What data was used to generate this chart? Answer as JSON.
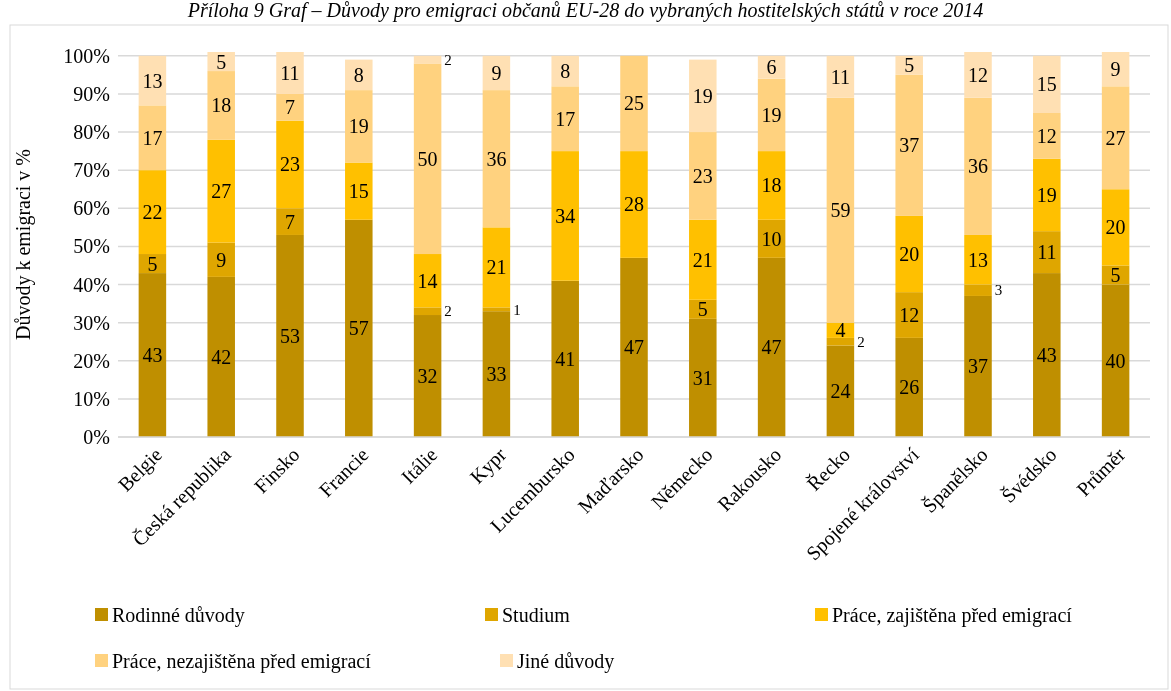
{
  "chart_data": {
    "type": "bar",
    "stacked": true,
    "title": "Příloha 9 Graf – Důvody pro emigraci občanů EU-28 do vybraných hostitelských států v roce 2014",
    "ylabel": "Důvody k emigraci v %",
    "categories": [
      "Belgie",
      "Česká republika",
      "Finsko",
      "Francie",
      "Itálie",
      "Kypr",
      "Lucembursko",
      "Maďarsko",
      "Německo",
      "Rakousko",
      "Řecko",
      "Spojené království",
      "Španělsko",
      "Švédsko",
      "Průměr"
    ],
    "series": [
      {
        "name": "Rodinné důvody",
        "color": "#bf8f00",
        "values": [
          43,
          42,
          53,
          57,
          32,
          33,
          41,
          47,
          31,
          47,
          24,
          26,
          37,
          43,
          40
        ]
      },
      {
        "name": "Studium",
        "color": "#dfa600",
        "values": [
          5,
          9,
          7,
          null,
          2,
          1,
          null,
          null,
          5,
          10,
          2,
          12,
          3,
          11,
          5
        ]
      },
      {
        "name": "Práce, zajištěna před emigrací",
        "color": "#ffc000",
        "values": [
          22,
          27,
          23,
          15,
          14,
          21,
          34,
          28,
          21,
          18,
          4,
          20,
          13,
          19,
          20
        ]
      },
      {
        "name": "Práce, nezajištěna před emigrací",
        "color": "#ffd27f",
        "values": [
          17,
          18,
          7,
          19,
          50,
          36,
          17,
          25,
          23,
          19,
          59,
          37,
          36,
          12,
          27
        ]
      },
      {
        "name": "Jiné důvody",
        "color": "#ffe0b3",
        "values": [
          13,
          5,
          11,
          8,
          2,
          9,
          8,
          null,
          19,
          6,
          11,
          5,
          12,
          15,
          9
        ]
      }
    ],
    "ylim": [
      0,
      101
    ],
    "yticks": [
      {
        "value": 0,
        "label": "0%"
      },
      {
        "value": 10,
        "label": "10%"
      },
      {
        "value": 20,
        "label": "20%"
      },
      {
        "value": 30,
        "label": "30%"
      },
      {
        "value": 40,
        "label": "40%"
      },
      {
        "value": 50,
        "label": "50%"
      },
      {
        "value": 60,
        "label": "60%"
      },
      {
        "value": 70,
        "label": "70%"
      },
      {
        "value": 80,
        "label": "80%"
      },
      {
        "value": 90,
        "label": "90%"
      },
      {
        "value": 100,
        "label": "100%"
      }
    ],
    "grid": "y",
    "legend": "bottom",
    "data_labels": true
  }
}
